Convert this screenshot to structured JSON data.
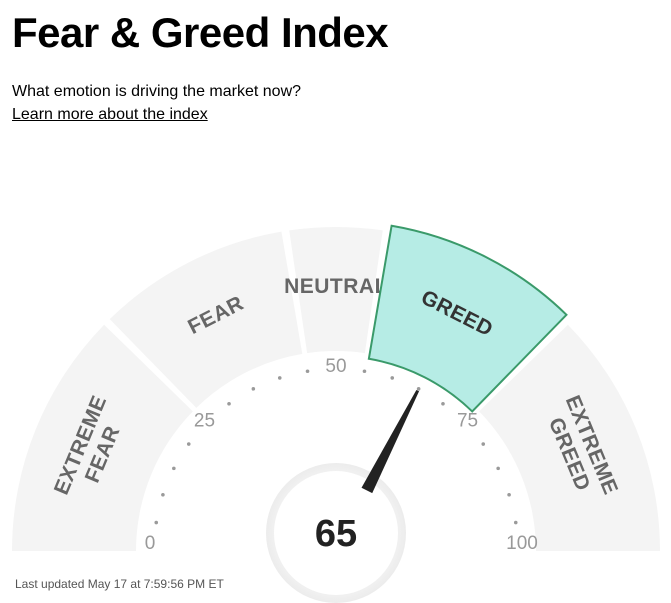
{
  "header": {
    "title": "Fear & Greed Index",
    "subtitle": "What emotion is driving the market now?",
    "learn_link": "Learn more about the index"
  },
  "chart_data": {
    "type": "gauge",
    "min": 0,
    "max": 100,
    "value": 65,
    "value_label": "65",
    "active_segment": "GREED",
    "segments": [
      {
        "name": "EXTREME FEAR",
        "lines": [
          "EXTREME",
          "FEAR"
        ],
        "from": 0,
        "to": 25
      },
      {
        "name": "FEAR",
        "lines": [
          "FEAR"
        ],
        "from": 25,
        "to": 45
      },
      {
        "name": "NEUTRAL",
        "lines": [
          "NEUTRAL"
        ],
        "from": 45,
        "to": 55
      },
      {
        "name": "GREED",
        "lines": [
          "GREED"
        ],
        "from": 55,
        "to": 75
      },
      {
        "name": "EXTREME GREED",
        "lines": [
          "EXTREME",
          "GREED"
        ],
        "from": 75,
        "to": 100
      }
    ],
    "tick_labels": [
      "0",
      "25",
      "50",
      "75",
      "100"
    ],
    "tick_values": [
      0,
      25,
      50,
      75,
      100
    ],
    "colors": {
      "segment_fill": "#f4f4f4",
      "active_fill": "#b6ece5",
      "active_stroke": "#3a9a6a",
      "needle": "#222222"
    }
  },
  "footer": {
    "last_updated": "Last updated May 17 at 7:59:56 PM ET"
  }
}
